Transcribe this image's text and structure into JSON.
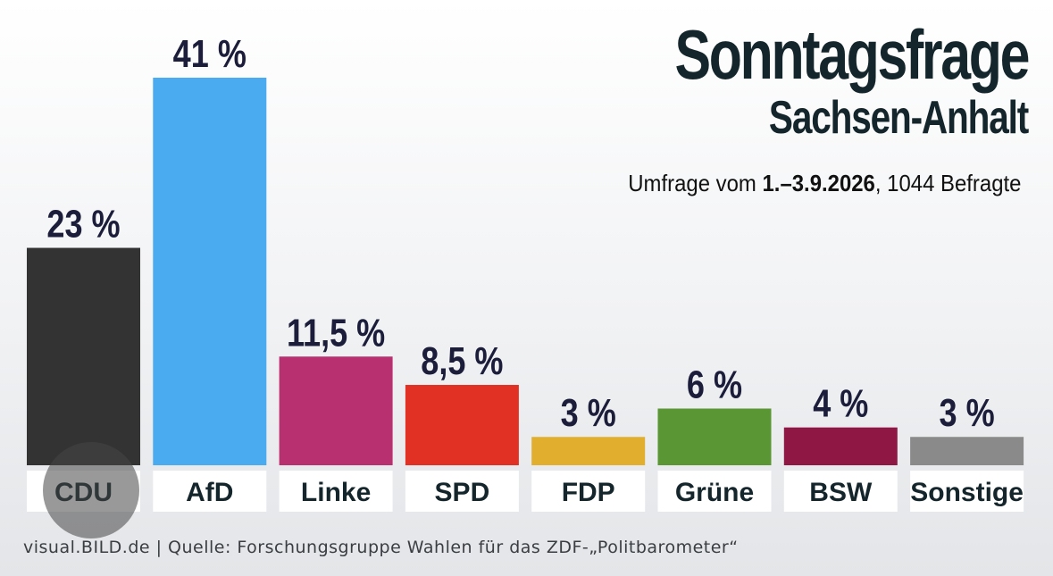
{
  "header": {
    "title": "Sonntagsfrage",
    "subtitle": "Sachsen-Anhalt",
    "survey_prefix": "Umfrage vom",
    "survey_dates": "1.–3.9.2026",
    "survey_suffix": ", 1044 Befragte"
  },
  "footer": {
    "text": "visual.BILD.de | Quelle: Forschungsgruppe Wahlen für das ZDF-„Politbarometer“"
  },
  "chart_data": {
    "type": "bar",
    "categories": [
      "CDU",
      "AfD",
      "Linke",
      "SPD",
      "FDP",
      "Grüne",
      "BSW",
      "Sonstige"
    ],
    "values": [
      23,
      41,
      11.5,
      8.5,
      3,
      6,
      4,
      3
    ],
    "value_labels": [
      "23 %",
      "41 %",
      "11,5 %",
      "8,5 %",
      "3 %",
      "6 %",
      "4 %",
      "3 %"
    ],
    "colors": [
      "#333333",
      "#4aabf0",
      "#b8306f",
      "#e03124",
      "#e1ae2e",
      "#5a9633",
      "#8f1743",
      "#8a8a8a"
    ],
    "ylim": [
      0,
      41
    ]
  }
}
